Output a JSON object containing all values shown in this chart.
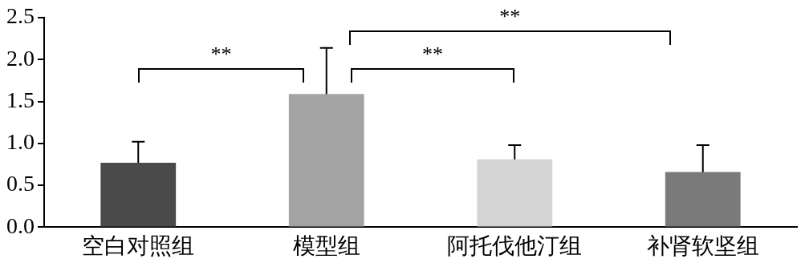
{
  "chart_data": {
    "type": "bar",
    "categories": [
      "空白对照组",
      "模型组",
      "阿托伐他汀组",
      "补肾软坚组"
    ],
    "values": [
      0.77,
      1.59,
      0.81,
      0.66
    ],
    "colors": [
      "#4a4a4a",
      "#a3a3a3",
      "#d4d4d4",
      "#7a7a7a"
    ],
    "errors": [
      0.25,
      0.55,
      0.17,
      0.32
    ],
    "ylim": [
      0,
      2.5
    ],
    "yticks": [
      {
        "value": 0,
        "label": "0.0"
      },
      {
        "value": 0.5,
        "label": "0.5"
      },
      {
        "value": 1,
        "label": "1.0"
      },
      {
        "value": 1.5,
        "label": "1.5"
      },
      {
        "value": 2,
        "label": "2.0"
      },
      {
        "value": 2.5,
        "label": "2.5"
      }
    ],
    "grid": false,
    "legend": false,
    "annotations": [
      "**",
      "**",
      "**"
    ]
  }
}
